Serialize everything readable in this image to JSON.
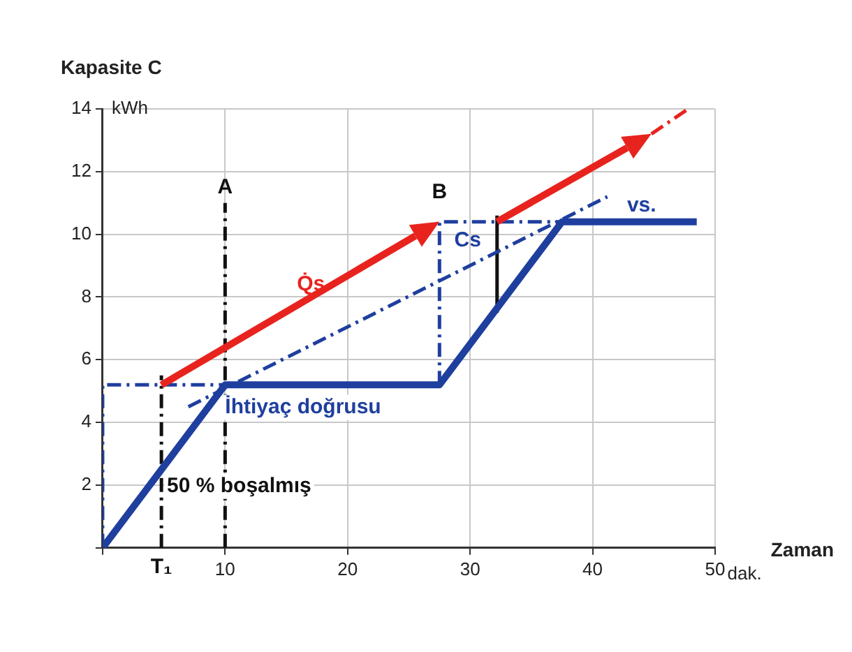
{
  "chart_data": {
    "type": "line",
    "xlabel": "Zaman",
    "ylabel": "Kapasite C",
    "xlim": [
      0,
      50
    ],
    "xticks": [
      {
        "value": 0,
        "label": null
      },
      10,
      20,
      30,
      40,
      50
    ],
    "ylim": [
      0,
      14
    ],
    "yticks": [
      {
        "value": 0,
        "label": null
      },
      2,
      4,
      6,
      8,
      10,
      12,
      14
    ],
    "grid": true,
    "legend": false,
    "line_style": "solid",
    "marker": "none",
    "series": [
      {
        "color": "#1f3f9f",
        "x": [
          0,
          10,
          27.5,
          37.5,
          48.5
        ],
        "values": [
          0,
          5.2,
          5.2,
          10.4,
          10.4
        ]
      },
      {
        "color": "#1f3f9f",
        "x": [
          7,
          41.2
        ],
        "values": [
          4.5,
          11.2
        ],
        "line_style": "dashed"
      },
      {
        "color": "#1f3f9f",
        "x": [
          0,
          0,
          10
        ],
        "values": [
          0,
          5.2,
          5.2
        ],
        "line_style": "dashed"
      },
      {
        "color": "#1f3f9f",
        "x": [
          27.5,
          27.5,
          37.5
        ],
        "values": [
          5.2,
          10.4,
          10.4
        ],
        "line_style": "dashed"
      },
      {
        "color": "#111111",
        "x": [
          4.8,
          4.8
        ],
        "values": [
          0,
          5.5
        ],
        "line_style": "dashed"
      },
      {
        "color": "#111111",
        "x": [
          10,
          10
        ],
        "values": [
          0,
          11
        ],
        "line_style": "dashed"
      },
      {
        "color": "#111111",
        "x": [
          32.2,
          32.2
        ],
        "values": [
          7.5,
          10.6
        ]
      }
    ],
    "annotations": [
      "A",
      "B",
      "Q̇s",
      "Cs",
      "vs.",
      "İhtiyaç doğrusu",
      "50 % boşalmış",
      "T₁",
      "kWh",
      "dak."
    ]
  }
}
